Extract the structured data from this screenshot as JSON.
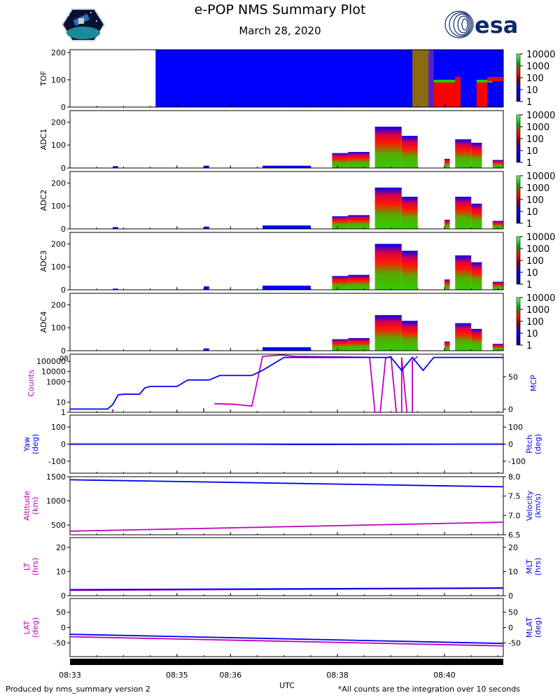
{
  "header": {
    "title": "e-POP NMS Summary Plot",
    "date": "March 28, 2020",
    "left_logo": "epop-mission-patch-logo",
    "right_logo": "esa-logo",
    "right_logo_text": "esa"
  },
  "footer": {
    "left": "Produced by nms_summary version 2",
    "right": "*All counts are the integration over 10 seconds"
  },
  "colors": {
    "magenta": "#c000c0",
    "blue": "#0000ee",
    "spectro_blue": "#0000ff",
    "spectro_red": "#ff0000",
    "spectro_green": "#22cc00",
    "esa_blue": "#0f2a6e"
  },
  "chart_data": {
    "type": "multi-panel",
    "xlabel": "UTC",
    "xticks": [
      "08:33",
      "08:35",
      "08:36",
      "08:38",
      "08:40"
    ],
    "xtick_values": [
      0,
      2,
      3,
      5,
      7
    ],
    "xlim": [
      0,
      8.1
    ],
    "colorbar_ticks": [
      "10000",
      "1000",
      "100",
      "10",
      "1"
    ],
    "spectrograms": [
      {
        "name": "TOF",
        "ylim": [
          0,
          210
        ],
        "yticks": [
          0,
          100,
          200
        ],
        "blocks": [
          {
            "x0": 1.6,
            "x1": 8.1,
            "y0": 0,
            "y1": 210,
            "c": "blue"
          },
          {
            "x0": 6.4,
            "x1": 6.7,
            "y0": 0,
            "y1": 210,
            "c": "olive"
          },
          {
            "x0": 6.7,
            "x1": 6.8,
            "y0": 0,
            "y1": 210,
            "c": "purple"
          },
          {
            "x0": 6.8,
            "x1": 7.2,
            "y0": 0,
            "y1": 100,
            "c": "red"
          },
          {
            "x0": 7.2,
            "x1": 7.3,
            "y0": 0,
            "y1": 110,
            "c": "red"
          },
          {
            "x0": 7.6,
            "x1": 7.8,
            "y0": 0,
            "y1": 90,
            "c": "red"
          },
          {
            "x0": 7.8,
            "x1": 8.1,
            "y0": 0,
            "y1": 0,
            "c": "blue"
          },
          {
            "x0": 6.8,
            "x1": 7.2,
            "y0": 90,
            "y1": 100,
            "c": "green"
          },
          {
            "x0": 7.6,
            "x1": 7.9,
            "y0": 90,
            "y1": 100,
            "c": "green"
          },
          {
            "x0": 7.8,
            "x1": 8.1,
            "y0": 95,
            "y1": 110,
            "c": "red"
          }
        ]
      },
      {
        "name": "ADC1",
        "ylim": [
          0,
          250
        ],
        "yticks": [
          0,
          100,
          200
        ],
        "blocks": [
          {
            "x0": 0.8,
            "x1": 0.9,
            "y0": 0,
            "y1": 8,
            "c": "blue"
          },
          {
            "x0": 2.5,
            "x1": 2.6,
            "y0": 0,
            "y1": 10,
            "c": "blue"
          },
          {
            "x0": 3.6,
            "x1": 4.5,
            "y0": 0,
            "y1": 10,
            "c": "blue"
          },
          {
            "x0": 4.9,
            "x1": 5.2,
            "y0": 0,
            "y1": 65,
            "c": "grad"
          },
          {
            "x0": 5.2,
            "x1": 5.6,
            "y0": 0,
            "y1": 70,
            "c": "grad"
          },
          {
            "x0": 5.7,
            "x1": 6.2,
            "y0": 0,
            "y1": 180,
            "c": "grad"
          },
          {
            "x0": 6.2,
            "x1": 6.5,
            "y0": 0,
            "y1": 140,
            "c": "grad"
          },
          {
            "x0": 7.0,
            "x1": 7.1,
            "y0": 0,
            "y1": 40,
            "c": "grad"
          },
          {
            "x0": 7.2,
            "x1": 7.5,
            "y0": 0,
            "y1": 125,
            "c": "grad"
          },
          {
            "x0": 7.5,
            "x1": 7.7,
            "y0": 0,
            "y1": 110,
            "c": "grad"
          },
          {
            "x0": 7.9,
            "x1": 8.1,
            "y0": 0,
            "y1": 35,
            "c": "grad"
          }
        ]
      },
      {
        "name": "ADC2",
        "ylim": [
          0,
          250
        ],
        "yticks": [
          0,
          100,
          200
        ],
        "blocks": [
          {
            "x0": 0.8,
            "x1": 0.9,
            "y0": 0,
            "y1": 8,
            "c": "blue"
          },
          {
            "x0": 2.5,
            "x1": 2.6,
            "y0": 0,
            "y1": 10,
            "c": "blue"
          },
          {
            "x0": 3.6,
            "x1": 4.5,
            "y0": 0,
            "y1": 15,
            "c": "blue"
          },
          {
            "x0": 4.9,
            "x1": 5.2,
            "y0": 0,
            "y1": 55,
            "c": "grad"
          },
          {
            "x0": 5.2,
            "x1": 5.6,
            "y0": 0,
            "y1": 60,
            "c": "grad"
          },
          {
            "x0": 5.7,
            "x1": 6.2,
            "y0": 0,
            "y1": 180,
            "c": "grad"
          },
          {
            "x0": 6.2,
            "x1": 6.5,
            "y0": 0,
            "y1": 140,
            "c": "grad"
          },
          {
            "x0": 7.0,
            "x1": 7.1,
            "y0": 0,
            "y1": 40,
            "c": "grad"
          },
          {
            "x0": 7.2,
            "x1": 7.5,
            "y0": 0,
            "y1": 140,
            "c": "grad"
          },
          {
            "x0": 7.5,
            "x1": 7.7,
            "y0": 0,
            "y1": 110,
            "c": "grad"
          },
          {
            "x0": 7.9,
            "x1": 8.1,
            "y0": 0,
            "y1": 35,
            "c": "grad"
          }
        ]
      },
      {
        "name": "ADC3",
        "ylim": [
          0,
          250
        ],
        "yticks": [
          0,
          100,
          200
        ],
        "blocks": [
          {
            "x0": 0.8,
            "x1": 0.9,
            "y0": 0,
            "y1": 5,
            "c": "blue"
          },
          {
            "x0": 2.5,
            "x1": 2.6,
            "y0": 0,
            "y1": 15,
            "c": "blue"
          },
          {
            "x0": 3.6,
            "x1": 4.5,
            "y0": 0,
            "y1": 18,
            "c": "blue"
          },
          {
            "x0": 4.9,
            "x1": 5.2,
            "y0": 0,
            "y1": 60,
            "c": "grad"
          },
          {
            "x0": 5.2,
            "x1": 5.6,
            "y0": 0,
            "y1": 65,
            "c": "grad"
          },
          {
            "x0": 5.7,
            "x1": 6.2,
            "y0": 0,
            "y1": 200,
            "c": "grad"
          },
          {
            "x0": 6.2,
            "x1": 6.5,
            "y0": 0,
            "y1": 170,
            "c": "grad"
          },
          {
            "x0": 7.0,
            "x1": 7.1,
            "y0": 0,
            "y1": 45,
            "c": "grad"
          },
          {
            "x0": 7.2,
            "x1": 7.5,
            "y0": 0,
            "y1": 150,
            "c": "grad"
          },
          {
            "x0": 7.5,
            "x1": 7.7,
            "y0": 0,
            "y1": 120,
            "c": "grad"
          },
          {
            "x0": 7.9,
            "x1": 8.1,
            "y0": 0,
            "y1": 35,
            "c": "grad"
          }
        ]
      },
      {
        "name": "ADC4",
        "ylim": [
          0,
          250
        ],
        "yticks": [
          0,
          100,
          200
        ],
        "blocks": [
          {
            "x0": 2.5,
            "x1": 2.6,
            "y0": 0,
            "y1": 10,
            "c": "blue"
          },
          {
            "x0": 3.6,
            "x1": 4.5,
            "y0": 0,
            "y1": 15,
            "c": "blue"
          },
          {
            "x0": 4.9,
            "x1": 5.2,
            "y0": 0,
            "y1": 50,
            "c": "grad"
          },
          {
            "x0": 5.2,
            "x1": 5.6,
            "y0": 0,
            "y1": 55,
            "c": "grad"
          },
          {
            "x0": 5.7,
            "x1": 6.2,
            "y0": 0,
            "y1": 155,
            "c": "grad"
          },
          {
            "x0": 6.2,
            "x1": 6.5,
            "y0": 0,
            "y1": 130,
            "c": "grad"
          },
          {
            "x0": 7.0,
            "x1": 7.1,
            "y0": 0,
            "y1": 40,
            "c": "grad"
          },
          {
            "x0": 7.2,
            "x1": 7.5,
            "y0": 0,
            "y1": 120,
            "c": "grad"
          },
          {
            "x0": 7.5,
            "x1": 7.7,
            "y0": 0,
            "y1": 95,
            "c": "grad"
          },
          {
            "x0": 7.9,
            "x1": 8.1,
            "y0": 0,
            "y1": 30,
            "c": "grad"
          }
        ]
      }
    ],
    "lines": [
      {
        "left_label": "Counts",
        "right_label": "MCP",
        "left_scale": "log",
        "left_ylim": [
          1,
          500000
        ],
        "left_ticks": [
          1,
          10,
          1000,
          10000,
          100000
        ],
        "left_tick_labels": [
          "1",
          "10",
          "1000",
          "10000",
          "100000"
        ],
        "right_ylim": [
          -5,
          85
        ],
        "right_ticks": [
          0,
          50
        ],
        "right_top_label": "08",
        "left_series": {
          "color": "magenta",
          "segments": [
            [
              [
                0.8,
                1
              ],
              [
                0.8,
                2
              ]
            ],
            [
              [
                2.5,
                1
              ],
              [
                2.5,
                2.5
              ]
            ],
            [
              [
                2.7,
                7
              ],
              [
                3.1,
                6
              ],
              [
                3.4,
                4
              ],
              [
                3.6,
                300000
              ],
              [
                3.9,
                400000
              ],
              [
                4.0,
                400000
              ],
              [
                4.2,
                300000
              ],
              [
                5.6,
                250000
              ],
              [
                5.7,
                1
              ],
              [
                5.7,
                0
              ],
              [
                5.8,
                1
              ]
            ],
            [
              [
                5.8,
                1
              ],
              [
                5.9,
                200000
              ],
              [
                6.0,
                300000
              ],
              [
                6.1,
                1
              ],
              [
                6.1,
                0
              ]
            ],
            [
              [
                6.2,
                1
              ],
              [
                6.2,
                250000
              ],
              [
                6.3,
                1
              ]
            ],
            [
              [
                6.4,
                1
              ],
              [
                6.4,
                120000
              ],
              [
                6.5,
                300000
              ]
            ]
          ]
        },
        "right_series": {
          "color": "blue",
          "points": [
            [
              0,
              0
            ],
            [
              0.7,
              0
            ],
            [
              0.8,
              7
            ],
            [
              0.9,
              22
            ],
            [
              1.0,
              23
            ],
            [
              1.3,
              23
            ],
            [
              1.4,
              33
            ],
            [
              1.5,
              35
            ],
            [
              2.0,
              35
            ],
            [
              2.2,
              45
            ],
            [
              2.6,
              45
            ],
            [
              2.8,
              52
            ],
            [
              3.4,
              52
            ],
            [
              3.6,
              60
            ],
            [
              4.0,
              80
            ],
            [
              4.2,
              80
            ],
            [
              5.2,
              80
            ],
            [
              5.4,
              80
            ],
            [
              6.0,
              80
            ],
            [
              6.2,
              60
            ],
            [
              6.4,
              80
            ],
            [
              6.6,
              60
            ],
            [
              6.8,
              80
            ],
            [
              8.1,
              80
            ]
          ]
        }
      },
      {
        "left_label": "Yaw\n(deg)",
        "right_label": "Pitch\n(deg)",
        "left_scale": "linear",
        "left_ylim": [
          -170,
          170
        ],
        "left_ticks": [
          -100,
          0,
          100
        ],
        "right_ylim": [
          -170,
          170
        ],
        "right_ticks": [
          -100,
          0,
          100
        ],
        "left_series": {
          "color": "blue",
          "points": [
            [
              0,
              0
            ],
            [
              3.0,
              0
            ],
            [
              4.2,
              -2
            ],
            [
              8.1,
              0
            ]
          ]
        },
        "right_series": {
          "color": "blue",
          "points": [
            [
              0,
              0
            ],
            [
              8.1,
              0
            ]
          ]
        }
      },
      {
        "left_label": "Altitude\n(km)",
        "right_label": "Velocity\n(km/s)",
        "left_scale": "linear",
        "left_ylim": [
          300,
          1500
        ],
        "left_ticks": [
          500,
          1000,
          1500
        ],
        "right_ylim": [
          6.5,
          8.0
        ],
        "right_ticks": [
          6.5,
          7.0,
          7.5,
          8.0
        ],
        "right_tick_labels": [
          "6.5",
          "7.0",
          "7.5",
          "8.0"
        ],
        "left_series": {
          "color": "magenta",
          "points": [
            [
              0,
              375
            ],
            [
              8.1,
              560
            ]
          ]
        },
        "right_series": {
          "color": "blue",
          "points": [
            [
              0,
              7.92
            ],
            [
              8.1,
              7.74
            ]
          ]
        }
      },
      {
        "left_label": "LT\n(hrs)",
        "right_label": "MLT\n(hrs)",
        "left_scale": "linear",
        "left_ylim": [
          0,
          24
        ],
        "left_ticks": [
          0,
          10,
          20
        ],
        "right_ylim": [
          0,
          24
        ],
        "right_ticks": [
          0,
          10,
          20
        ],
        "left_series": {
          "color": "magenta",
          "points": [
            [
              0,
              2.2
            ],
            [
              8.1,
              3.1
            ]
          ]
        },
        "right_series": {
          "color": "blue",
          "points": [
            [
              0,
              2.5
            ],
            [
              8.1,
              3.2
            ]
          ]
        }
      },
      {
        "left_label": "LAT\n(deg)",
        "right_label": "MLAT\n(deg)",
        "left_scale": "linear",
        "left_ylim": [
          -95,
          95
        ],
        "left_ticks": [
          -50,
          0,
          50
        ],
        "right_ylim": [
          -95,
          95
        ],
        "right_ticks": [
          -50,
          0,
          50
        ],
        "left_series": {
          "color": "magenta",
          "points": [
            [
              0,
              -30
            ],
            [
              8.1,
              -60
            ]
          ]
        },
        "right_series": {
          "color": "blue",
          "points": [
            [
              0,
              -22
            ],
            [
              8.1,
              -52
            ]
          ]
        }
      }
    ]
  }
}
